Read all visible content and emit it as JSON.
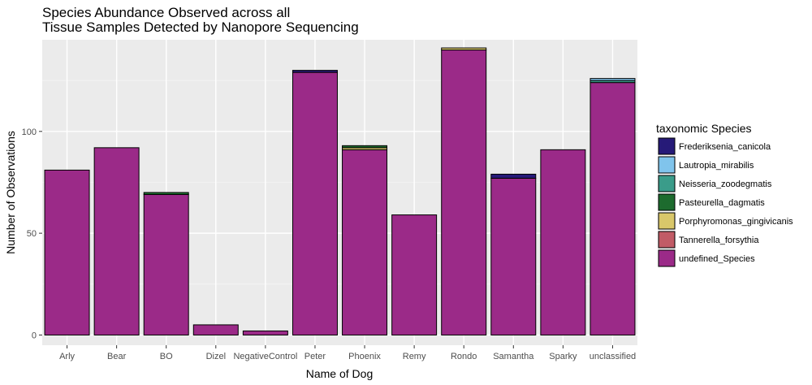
{
  "chart_data": {
    "type": "bar",
    "stacked": true,
    "title": [
      "Species Abundance Observed across all",
      "Tissue Samples Detected by Nanopore Sequencing"
    ],
    "xlabel": "Name of Dog",
    "ylabel": "Number of Observations",
    "ylim": [
      -5,
      145
    ],
    "yticks": [
      0,
      50,
      100
    ],
    "grid": true,
    "legend_position": "right",
    "legend_title": "taxonomic Species",
    "categories": [
      "Arly",
      "Bear",
      "BO",
      "Dizel",
      "NegativeControl",
      "Peter",
      "Phoenix",
      "Remy",
      "Rondo",
      "Samantha",
      "Sparky",
      "unclassified"
    ],
    "series": [
      {
        "name": "undefined_Species",
        "color": "#9B2A88",
        "values": [
          81,
          92,
          69,
          5,
          2,
          129,
          91,
          59,
          140,
          77,
          91,
          124
        ]
      },
      {
        "name": "Tannerella_forsythia",
        "color": "#C15B66",
        "values": [
          0,
          0,
          0,
          0,
          0,
          0,
          0,
          0,
          0,
          0,
          0,
          0
        ]
      },
      {
        "name": "Porphyromonas_gingivicanis",
        "color": "#D9C76A",
        "values": [
          0,
          0,
          0,
          0,
          0,
          0,
          1,
          0,
          1,
          0,
          0,
          0
        ]
      },
      {
        "name": "Pasteurella_dagmatis",
        "color": "#1D6B2E",
        "values": [
          0,
          0,
          1,
          0,
          0,
          0,
          1,
          0,
          0,
          0,
          0,
          0
        ]
      },
      {
        "name": "Neisseria_zoodegmatis",
        "color": "#3A9C8A",
        "values": [
          0,
          0,
          0,
          0,
          0,
          0,
          0,
          0,
          0,
          0,
          0,
          1
        ]
      },
      {
        "name": "Lautropia_mirabilis",
        "color": "#80C4EC",
        "values": [
          0,
          0,
          0,
          0,
          0,
          0,
          0,
          0,
          0,
          0,
          0,
          1
        ]
      },
      {
        "name": "Frederiksenia_canicola",
        "color": "#261A78",
        "values": [
          0,
          0,
          0,
          0,
          0,
          1,
          0,
          0,
          0,
          2,
          0,
          0
        ]
      }
    ],
    "legend_order": [
      "Frederiksenia_canicola",
      "Lautropia_mirabilis",
      "Neisseria_zoodegmatis",
      "Pasteurella_dagmatis",
      "Porphyromonas_gingivicanis",
      "Tannerella_forsythia",
      "undefined_Species"
    ]
  }
}
